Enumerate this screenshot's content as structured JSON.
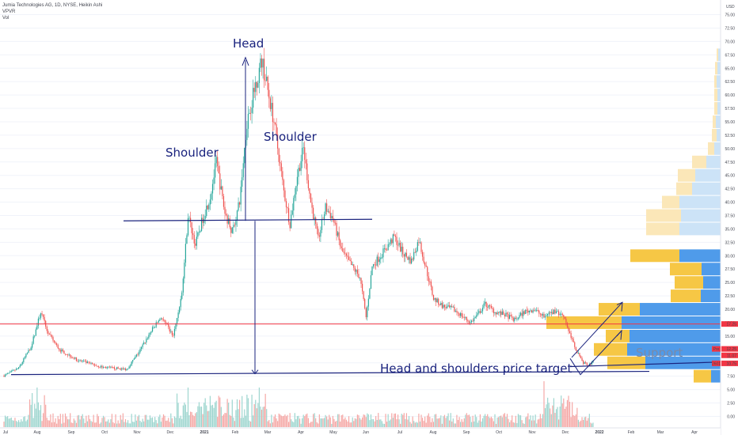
{
  "header": {
    "title": "Jumia Technologies AG, 1D, NYSE, Heikin Ashi",
    "indicator_1": "VPVR",
    "indicator_2": "Vol"
  },
  "chart_data": {
    "type": "candlestick",
    "currency": "USD",
    "y_ticks": [
      "0.00",
      "2.50",
      "5.00",
      "7.50",
      "10.00",
      "12.50",
      "15.00",
      "17.50",
      "20.00",
      "22.50",
      "25.00",
      "27.50",
      "30.00",
      "32.50",
      "35.00",
      "37.50",
      "40.00",
      "42.50",
      "45.00",
      "47.50",
      "50.00",
      "52.50",
      "55.00",
      "57.50",
      "60.00",
      "62.50",
      "65.00",
      "67.50",
      "70.00",
      "72.50",
      "75.00"
    ],
    "ylim": [
      -2,
      77
    ],
    "x_labels": [
      "Jul",
      "Aug",
      "Sep",
      "Oct",
      "Nov",
      "Dec",
      "2021",
      "Feb",
      "Mar",
      "Apr",
      "May",
      "Jun",
      "Jul",
      "Aug",
      "Sep",
      "Oct",
      "Nov",
      "Dec",
      "2022",
      "Feb",
      "Mar",
      "Apr"
    ],
    "price_path": [
      {
        "d": 0,
        "p": 7.6
      },
      {
        "d": 12,
        "p": 9.0
      },
      {
        "d": 22,
        "p": 13.0
      },
      {
        "d": 30,
        "p": 19.5
      },
      {
        "d": 36,
        "p": 15.5
      },
      {
        "d": 45,
        "p": 12.5
      },
      {
        "d": 60,
        "p": 10.5
      },
      {
        "d": 80,
        "p": 9.2
      },
      {
        "d": 100,
        "p": 8.8
      },
      {
        "d": 110,
        "p": 12.0
      },
      {
        "d": 120,
        "p": 16.0
      },
      {
        "d": 128,
        "p": 18.5
      },
      {
        "d": 138,
        "p": 15.0
      },
      {
        "d": 145,
        "p": 23.0
      },
      {
        "d": 150,
        "p": 37.5
      },
      {
        "d": 156,
        "p": 32.0
      },
      {
        "d": 162,
        "p": 37.0
      },
      {
        "d": 168,
        "p": 41.0
      },
      {
        "d": 173,
        "p": 47.5
      },
      {
        "d": 180,
        "p": 38.0
      },
      {
        "d": 186,
        "p": 34.5
      },
      {
        "d": 192,
        "p": 40.0
      },
      {
        "d": 198,
        "p": 55.0
      },
      {
        "d": 205,
        "p": 62.0
      },
      {
        "d": 210,
        "p": 66.5
      },
      {
        "d": 214,
        "p": 62.0
      },
      {
        "d": 220,
        "p": 55.0
      },
      {
        "d": 228,
        "p": 42.0
      },
      {
        "d": 233,
        "p": 36.0
      },
      {
        "d": 239,
        "p": 45.0
      },
      {
        "d": 244,
        "p": 50.0
      },
      {
        "d": 250,
        "p": 40.0
      },
      {
        "d": 256,
        "p": 33.0
      },
      {
        "d": 262,
        "p": 39.0
      },
      {
        "d": 268,
        "p": 37.0
      },
      {
        "d": 275,
        "p": 31.0
      },
      {
        "d": 282,
        "p": 28.5
      },
      {
        "d": 290,
        "p": 26.0
      },
      {
        "d": 295,
        "p": 18.5
      },
      {
        "d": 300,
        "p": 28.0
      },
      {
        "d": 310,
        "p": 31.0
      },
      {
        "d": 318,
        "p": 33.5
      },
      {
        "d": 325,
        "p": 30.5
      },
      {
        "d": 332,
        "p": 29.0
      },
      {
        "d": 338,
        "p": 33.0
      },
      {
        "d": 344,
        "p": 27.5
      },
      {
        "d": 350,
        "p": 22.0
      },
      {
        "d": 358,
        "p": 20.5
      },
      {
        "d": 366,
        "p": 20.0
      },
      {
        "d": 372,
        "p": 19.0
      },
      {
        "d": 380,
        "p": 17.5
      },
      {
        "d": 386,
        "p": 19.0
      },
      {
        "d": 392,
        "p": 21.0
      },
      {
        "d": 400,
        "p": 19.5
      },
      {
        "d": 408,
        "p": 19.0
      },
      {
        "d": 416,
        "p": 18.0
      },
      {
        "d": 424,
        "p": 19.5
      },
      {
        "d": 432,
        "p": 20.0
      },
      {
        "d": 440,
        "p": 18.5
      },
      {
        "d": 448,
        "p": 19.5
      },
      {
        "d": 456,
        "p": 19.0
      },
      {
        "d": 460,
        "p": 16.0
      },
      {
        "d": 466,
        "p": 12.5
      },
      {
        "d": 472,
        "p": 10.0
      },
      {
        "d": 477,
        "p": 9.5
      },
      {
        "d": 480,
        "p": 10.5
      }
    ],
    "volume_profile": [
      {
        "price": 7.5,
        "down": 22,
        "up": 12
      },
      {
        "price": 10.0,
        "down": 48,
        "up": 95
      },
      {
        "price": 12.5,
        "down": 42,
        "up": 118
      },
      {
        "price": 15.0,
        "down": 30,
        "up": 115
      },
      {
        "price": 17.5,
        "down": 95,
        "up": 125
      },
      {
        "price": 20.0,
        "down": 52,
        "up": 102
      },
      {
        "price": 22.5,
        "down": 38,
        "up": 25
      },
      {
        "price": 25.0,
        "down": 36,
        "up": 22
      },
      {
        "price": 27.5,
        "down": 40,
        "up": 24
      },
      {
        "price": 30.0,
        "down": 62,
        "up": 52
      },
      {
        "price": 32.5,
        "down": 0,
        "up": 0
      },
      {
        "price": 35.0,
        "down": 42,
        "up": 52
      },
      {
        "price": 37.5,
        "down": 44,
        "up": 50
      },
      {
        "price": 40.0,
        "down": 22,
        "up": 52
      },
      {
        "price": 42.5,
        "down": 20,
        "up": 36
      },
      {
        "price": 45.0,
        "down": 22,
        "up": 32
      },
      {
        "price": 47.5,
        "down": 18,
        "up": 18
      },
      {
        "price": 50.0,
        "down": 8,
        "up": 8
      },
      {
        "price": 52.5,
        "down": 6,
        "up": 5
      },
      {
        "price": 55.0,
        "down": 4,
        "up": 6
      },
      {
        "price": 57.5,
        "down": 4,
        "up": 4
      },
      {
        "price": 60.0,
        "down": 4,
        "up": 4
      },
      {
        "price": 62.5,
        "down": 3,
        "up": 5
      },
      {
        "price": 65.0,
        "down": 3,
        "up": 4
      },
      {
        "price": 67.5,
        "down": 2,
        "up": 3
      }
    ],
    "levels": {
      "resistance": 17.25,
      "neckline_left": 36.5,
      "neckline_right": 36.8,
      "target_left": 7.8,
      "target_right": 8.4,
      "support_left": 9.3,
      "support_right": 10.1
    },
    "price_tags": [
      {
        "label": "17.25",
        "color": "#f23645"
      },
      {
        "label": "12.25",
        "color": "#f23645",
        "pre": "Pre"
      },
      {
        "label": "11.07",
        "color": "#f23645"
      },
      {
        "label": "10.75",
        "color": "#f23645",
        "pre": "2601"
      }
    ],
    "annotations": {
      "head": "Head",
      "left_shoulder": "Shoulder",
      "right_shoulder": "Shoulder",
      "target": "Head and shoulders price target",
      "support": "Support"
    },
    "colors": {
      "up": "#26a69a",
      "down": "#ef5350",
      "profile_up": "#4f9bea",
      "profile_down": "#f6c745",
      "profile_up_light": "#cce3f7",
      "profile_down_light": "#fbe7b8",
      "annotation": "#1a237e",
      "resistance": "#f23645"
    }
  }
}
